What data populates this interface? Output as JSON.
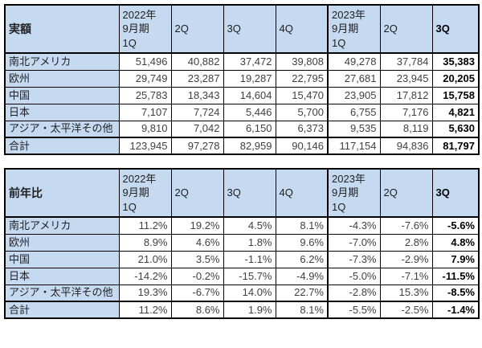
{
  "colors": {
    "header_fill": "#c5d9f1",
    "border": "#000000",
    "value_text": "#404040",
    "bold_text": "#000000",
    "background": "#ffffff"
  },
  "tables": [
    {
      "title": "実額",
      "columns": [
        "2022年\n9月期\n1Q",
        "2Q",
        "3Q",
        "4Q",
        "2023年\n9月期\n1Q",
        "2Q",
        "3Q"
      ],
      "rows": [
        {
          "label": "南北アメリカ",
          "values": [
            "51,496",
            "40,882",
            "37,472",
            "39,808",
            "49,278",
            "37,784",
            "35,383"
          ]
        },
        {
          "label": "欧州",
          "values": [
            "29,749",
            "23,287",
            "19,287",
            "22,795",
            "27,681",
            "23,945",
            "20,205"
          ]
        },
        {
          "label": "中国",
          "values": [
            "25,783",
            "18,343",
            "14,604",
            "15,470",
            "23,905",
            "17,812",
            "15,758"
          ]
        },
        {
          "label": "日本",
          "values": [
            "7,107",
            "7,724",
            "5,446",
            "5,700",
            "6,755",
            "7,176",
            "4,821"
          ]
        },
        {
          "label": "アジア・太平洋その他",
          "values": [
            "9,810",
            "7,042",
            "6,150",
            "6,373",
            "9,535",
            "8,119",
            "5,630"
          ]
        }
      ],
      "total": {
        "label": "合計",
        "values": [
          "123,945",
          "97,278",
          "82,959",
          "90,146",
          "117,154",
          "94,836",
          "81,797"
        ]
      }
    },
    {
      "title": "前年比",
      "columns": [
        "2022年\n9月期\n1Q",
        "2Q",
        "3Q",
        "4Q",
        "2023年\n9月期\n1Q",
        "2Q",
        "3Q"
      ],
      "rows": [
        {
          "label": "南北アメリカ",
          "values": [
            "11.2%",
            "19.2%",
            "4.5%",
            "8.1%",
            "-4.3%",
            "-7.6%",
            "-5.6%"
          ]
        },
        {
          "label": "欧州",
          "values": [
            "8.9%",
            "4.6%",
            "1.8%",
            "9.6%",
            "-7.0%",
            "2.8%",
            "4.8%"
          ]
        },
        {
          "label": "中国",
          "values": [
            "21.0%",
            "3.5%",
            "-1.1%",
            "6.2%",
            "-7.3%",
            "-2.9%",
            "7.9%"
          ]
        },
        {
          "label": "日本",
          "values": [
            "-14.2%",
            "-0.2%",
            "-15.7%",
            "-4.9%",
            "-5.0%",
            "-7.1%",
            "-11.5%"
          ]
        },
        {
          "label": "アジア・太平洋その他",
          "values": [
            "19.3%",
            "-6.7%",
            "14.0%",
            "22.7%",
            "-2.8%",
            "15.3%",
            "-8.5%"
          ]
        }
      ],
      "total": {
        "label": "合計",
        "values": [
          "11.2%",
          "8.6%",
          "1.9%",
          "8.1%",
          "-5.5%",
          "-2.5%",
          "-1.4%"
        ]
      }
    }
  ],
  "chart_data": [
    {
      "type": "table",
      "title": "実額",
      "columns": [
        "2022年9月期 1Q",
        "2Q",
        "3Q",
        "4Q",
        "2023年9月期 1Q",
        "2Q",
        "3Q"
      ],
      "rows": [
        {
          "label": "南北アメリカ",
          "values": [
            51496,
            40882,
            37472,
            39808,
            49278,
            37784,
            35383
          ]
        },
        {
          "label": "欧州",
          "values": [
            29749,
            23287,
            19287,
            22795,
            27681,
            23945,
            20205
          ]
        },
        {
          "label": "中国",
          "values": [
            25783,
            18343,
            14604,
            15470,
            23905,
            17812,
            15758
          ]
        },
        {
          "label": "日本",
          "values": [
            7107,
            7724,
            5446,
            5700,
            6755,
            7176,
            4821
          ]
        },
        {
          "label": "アジア・太平洋その他",
          "values": [
            9810,
            7042,
            6150,
            6373,
            9535,
            8119,
            5630
          ]
        },
        {
          "label": "合計",
          "values": [
            123945,
            97278,
            82959,
            90146,
            117154,
            94836,
            81797
          ]
        }
      ]
    },
    {
      "type": "table",
      "title": "前年比",
      "unit": "%",
      "columns": [
        "2022年9月期 1Q",
        "2Q",
        "3Q",
        "4Q",
        "2023年9月期 1Q",
        "2Q",
        "3Q"
      ],
      "rows": [
        {
          "label": "南北アメリカ",
          "values": [
            11.2,
            19.2,
            4.5,
            8.1,
            -4.3,
            -7.6,
            -5.6
          ]
        },
        {
          "label": "欧州",
          "values": [
            8.9,
            4.6,
            1.8,
            9.6,
            -7.0,
            2.8,
            4.8
          ]
        },
        {
          "label": "中国",
          "values": [
            21.0,
            3.5,
            -1.1,
            6.2,
            -7.3,
            -2.9,
            7.9
          ]
        },
        {
          "label": "日本",
          "values": [
            -14.2,
            -0.2,
            -15.7,
            -4.9,
            -5.0,
            -7.1,
            -11.5
          ]
        },
        {
          "label": "アジア・太平洋その他",
          "values": [
            19.3,
            -6.7,
            14.0,
            22.7,
            -2.8,
            15.3,
            -8.5
          ]
        },
        {
          "label": "合計",
          "values": [
            11.2,
            8.6,
            1.9,
            8.1,
            -5.5,
            -2.5,
            -1.4
          ]
        }
      ]
    }
  ]
}
